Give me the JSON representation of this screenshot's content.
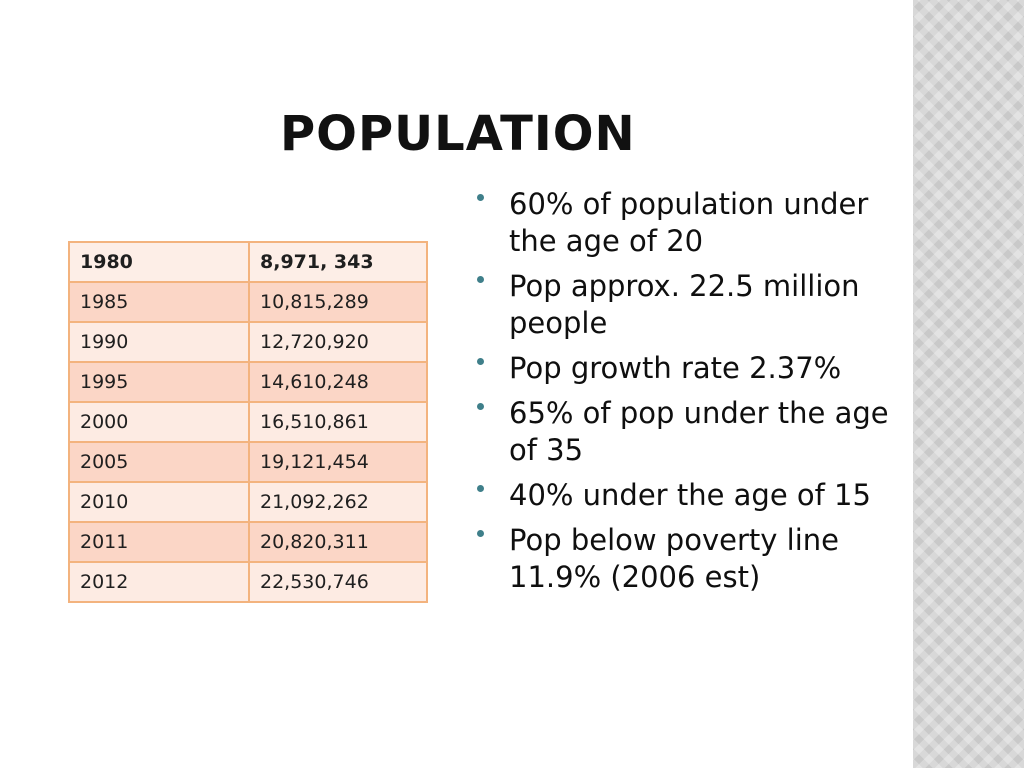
{
  "slide": {
    "title": "POPULATION"
  },
  "table": {
    "rows": [
      {
        "year": "1980",
        "population": "8,971, 343"
      },
      {
        "year": "1985",
        "population": "10,815,289"
      },
      {
        "year": "1990",
        "population": "12,720,920"
      },
      {
        "year": "1995",
        "population": "14,610,248"
      },
      {
        "year": "2000",
        "population": "16,510,861"
      },
      {
        "year": "2005",
        "population": "19,121,454"
      },
      {
        "year": "2010",
        "population": "21,092,262"
      },
      {
        "year": "2011",
        "population": "20,820,311"
      },
      {
        "year": "2012",
        "population": "22,530,746"
      }
    ]
  },
  "bullets": [
    {
      "text": "60% of population under the age of 20"
    },
    {
      "text": "Pop approx. 22.5 million people"
    },
    {
      "text": "Pop growth rate 2.37%"
    },
    {
      "text": "65% of pop under the age of 35"
    },
    {
      "text": "40% under the age of 15"
    },
    {
      "text": "Pop below poverty line 11.9% (2006 est)"
    }
  ],
  "colors": {
    "table_border": "#f3b37e",
    "row_light": "#fdebe3",
    "row_dark": "#fbd6c6",
    "bullet_dot": "#3f7f8a",
    "side_pattern": "#c9c9c9"
  }
}
